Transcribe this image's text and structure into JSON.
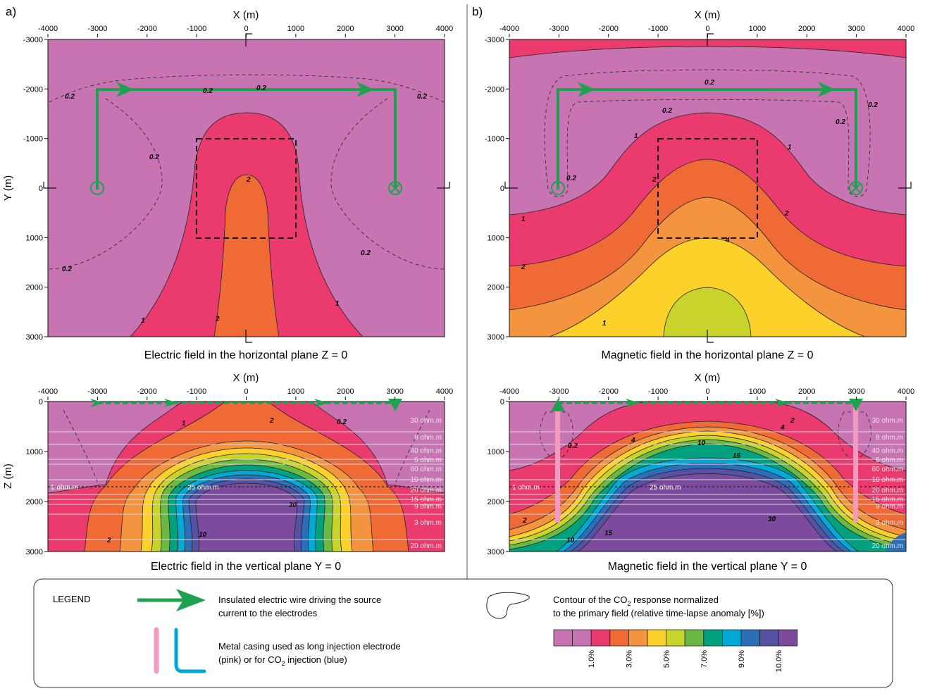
{
  "panels": {
    "a_letter": "a)",
    "b_letter": "b)"
  },
  "axis": {
    "x_label": "X (m)",
    "y_label": "Y (m)",
    "z_label": "Z (m)",
    "x_ticks": [
      "-4000",
      "-3000",
      "-2000",
      "-1000",
      "0",
      "1000",
      "2000",
      "3000",
      "4000"
    ],
    "y_ticks": [
      "-3000",
      "-2000",
      "-1000",
      "0",
      "1000",
      "2000",
      "3000"
    ],
    "z_ticks": [
      "0",
      "1000",
      "2000",
      "3000"
    ]
  },
  "titles": {
    "a_top": "Electric field in the horizontal plane Z = 0",
    "a_bottom": "Electric field in the vertical plane Y = 0",
    "b_top": "Magnetic field in the horizontal plane Z = 0",
    "b_bottom": "Magnetic field in the vertical plane Y = 0"
  },
  "layers": [
    "30 ohm.m",
    "8 ohm.m",
    "40 ohm.m",
    "6 ohm.m",
    "60 ohm.m",
    "10 ohm.m",
    "20 ohm.m",
    "25 ohm.m",
    "15 ohm.m",
    "9 ohm.m",
    "3 ohm.m",
    "20 ohm.m"
  ],
  "reservoir": {
    "left": "1 ohm.m",
    "center": "25 ohm.m"
  },
  "contours": {
    "c02": "0.2",
    "c1": "1",
    "c2": "2",
    "c4": "4",
    "c10": "10",
    "c15": "15",
    "c30": "30"
  },
  "legend": {
    "title": "LEGEND",
    "wire_line1": "Insulated electric wire driving the source",
    "wire_line2": "current to the electrodes",
    "casing_line1": "Metal casing used as long injection electrode",
    "casing_line2_pre": "(pink) or for CO",
    "casing_line2_sub": "2",
    "casing_line2_post": " injection (blue)",
    "contour_line1_pre": "Contour of the CO",
    "contour_line1_sub": "2",
    "contour_line1_post": " response normalized",
    "contour_line2": "to the primary field (relative time-lapse anomaly [%])",
    "scale_labels": [
      "1.0%",
      "3.0%",
      "5.0%",
      "7.0%",
      "9.0%",
      "10.0%"
    ]
  },
  "colors": {
    "background_field": "#c874b2",
    "pink_red": "#ea3a6e",
    "orange_red": "#ef6a34",
    "orange": "#f4943f",
    "yellow": "#fcd12a",
    "yellow_green": "#c8d32c",
    "green": "#6ab943",
    "teal": "#00a17e",
    "cyan": "#00a9d6",
    "blue": "#2c6fb8",
    "indigo": "#5552a4",
    "purple": "#7c4b9e",
    "wire": "#1fa250",
    "casing_pink": "#f19bc0",
    "casing_blue": "#00a8d8"
  },
  "colorbar": [
    "#c874b2",
    "#c874b2",
    "#ea3a6e",
    "#ef6a34",
    "#f4943f",
    "#fcd12a",
    "#c8d32c",
    "#6ab943",
    "#00a17e",
    "#00a9d6",
    "#2c6fb8",
    "#5552a4",
    "#7c4b9e"
  ]
}
